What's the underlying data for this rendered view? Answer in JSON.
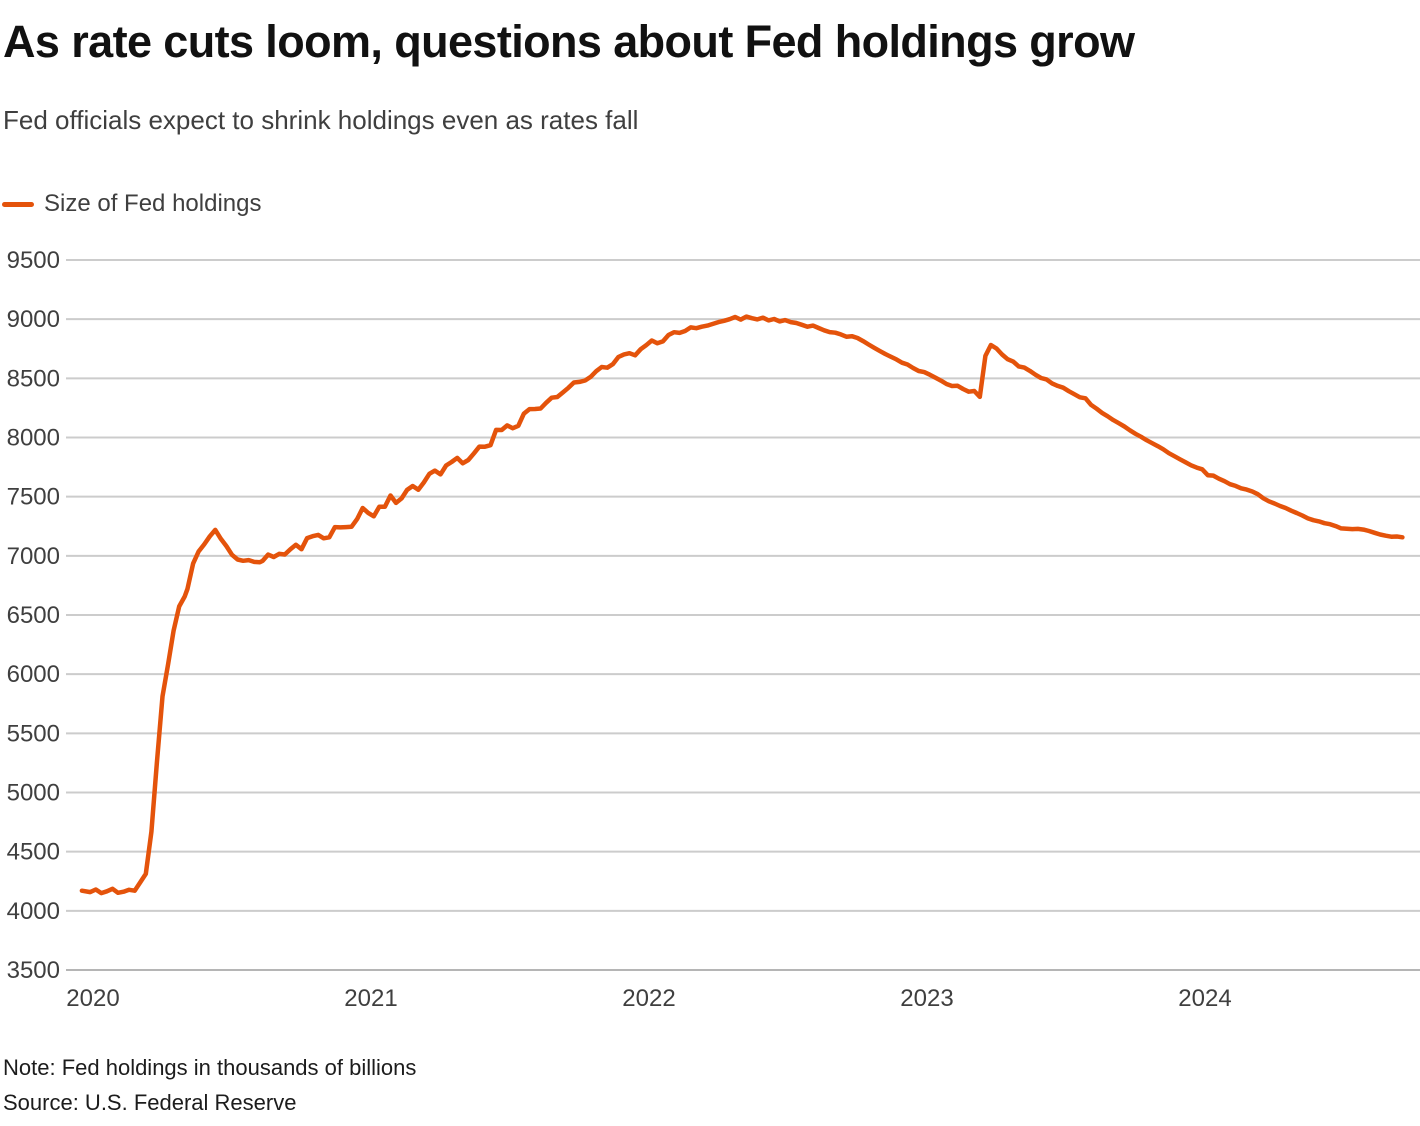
{
  "header": {
    "title": "As rate cuts loom, questions about Fed holdings grow",
    "subtitle": "Fed officials expect to shrink holdings even as rates fall"
  },
  "legend": {
    "label": "Size of Fed holdings"
  },
  "footer": {
    "note": "Note: Fed holdings in thousands of billions",
    "source": "Source: U.S. Federal Reserve"
  },
  "colors": {
    "line": "#E4530B",
    "grid": "#cccccc",
    "baseline": "#b5b5b5",
    "tick_text": "#3f3f3f",
    "title_text": "#111111",
    "note_text": "#1c1c1c"
  },
  "chart_data": {
    "type": "line",
    "title": "As rate cuts loom, questions about Fed holdings grow",
    "subtitle": "Fed officials expect to shrink holdings even as rates fall",
    "xlabel": "",
    "ylabel": "",
    "unit_note": "Fed holdings in thousands of billions",
    "source": "U.S. Federal Reserve",
    "grid": true,
    "legend_position": "top-left",
    "ylim": [
      3500,
      9500
    ],
    "xlim": [
      2019.9,
      2024.78
    ],
    "y_ticks": [
      9500,
      9000,
      8500,
      8000,
      7500,
      7000,
      6500,
      6000,
      5500,
      5000,
      4500,
      4000,
      3500
    ],
    "x_ticks": [
      2020,
      2021,
      2022,
      2023,
      2024
    ],
    "series": [
      {
        "name": "Size of Fed holdings",
        "color": "#E4530B",
        "points": [
          [
            2019.96,
            4170
          ],
          [
            2019.99,
            4158
          ],
          [
            2020.01,
            4180
          ],
          [
            2020.03,
            4150
          ],
          [
            2020.05,
            4165
          ],
          [
            2020.07,
            4186
          ],
          [
            2020.09,
            4152
          ],
          [
            2020.11,
            4162
          ],
          [
            2020.13,
            4178
          ],
          [
            2020.15,
            4170
          ],
          [
            2020.17,
            4242
          ],
          [
            2020.19,
            4312
          ],
          [
            2020.21,
            4668
          ],
          [
            2020.23,
            5254
          ],
          [
            2020.25,
            5812
          ],
          [
            2020.27,
            6083
          ],
          [
            2020.29,
            6368
          ],
          [
            2020.31,
            6573
          ],
          [
            2020.33,
            6656
          ],
          [
            2020.34,
            6721
          ],
          [
            2020.36,
            6934
          ],
          [
            2020.38,
            7037
          ],
          [
            2020.4,
            7097
          ],
          [
            2020.42,
            7165
          ],
          [
            2020.44,
            7219
          ],
          [
            2020.46,
            7143
          ],
          [
            2020.48,
            7082
          ],
          [
            2020.5,
            7009
          ],
          [
            2020.52,
            6969
          ],
          [
            2020.54,
            6958
          ],
          [
            2020.56,
            6964
          ],
          [
            2020.58,
            6949
          ],
          [
            2020.6,
            6945
          ],
          [
            2020.61,
            6957
          ],
          [
            2020.63,
            7010
          ],
          [
            2020.65,
            6990
          ],
          [
            2020.67,
            7017
          ],
          [
            2020.69,
            7011
          ],
          [
            2020.71,
            7056
          ],
          [
            2020.73,
            7093
          ],
          [
            2020.75,
            7056
          ],
          [
            2020.77,
            7150
          ],
          [
            2020.79,
            7166
          ],
          [
            2020.81,
            7177
          ],
          [
            2020.83,
            7148
          ],
          [
            2020.85,
            7157
          ],
          [
            2020.87,
            7243
          ],
          [
            2020.89,
            7240
          ],
          [
            2020.91,
            7243
          ],
          [
            2020.93,
            7245
          ],
          [
            2020.95,
            7310
          ],
          [
            2020.97,
            7404
          ],
          [
            2020.99,
            7363
          ],
          [
            2021.01,
            7334
          ],
          [
            2021.03,
            7415
          ],
          [
            2021.05,
            7414
          ],
          [
            2021.07,
            7510
          ],
          [
            2021.09,
            7447
          ],
          [
            2021.11,
            7485
          ],
          [
            2021.13,
            7557
          ],
          [
            2021.15,
            7590
          ],
          [
            2021.17,
            7559
          ],
          [
            2021.19,
            7620
          ],
          [
            2021.21,
            7693
          ],
          [
            2021.23,
            7720
          ],
          [
            2021.25,
            7688
          ],
          [
            2021.27,
            7763
          ],
          [
            2021.29,
            7793
          ],
          [
            2021.31,
            7828
          ],
          [
            2021.33,
            7782
          ],
          [
            2021.35,
            7810
          ],
          [
            2021.37,
            7866
          ],
          [
            2021.39,
            7923
          ],
          [
            2021.41,
            7922
          ],
          [
            2021.43,
            7935
          ],
          [
            2021.45,
            8064
          ],
          [
            2021.47,
            8063
          ],
          [
            2021.49,
            8102
          ],
          [
            2021.51,
            8079
          ],
          [
            2021.53,
            8099
          ],
          [
            2021.55,
            8202
          ],
          [
            2021.57,
            8240
          ],
          [
            2021.59,
            8241
          ],
          [
            2021.61,
            8245
          ],
          [
            2021.63,
            8293
          ],
          [
            2021.65,
            8336
          ],
          [
            2021.67,
            8342
          ],
          [
            2021.69,
            8380
          ],
          [
            2021.71,
            8420
          ],
          [
            2021.73,
            8465
          ],
          [
            2021.75,
            8470
          ],
          [
            2021.77,
            8482
          ],
          [
            2021.79,
            8512
          ],
          [
            2021.81,
            8560
          ],
          [
            2021.83,
            8596
          ],
          [
            2021.85,
            8590
          ],
          [
            2021.87,
            8620
          ],
          [
            2021.89,
            8680
          ],
          [
            2021.91,
            8702
          ],
          [
            2021.93,
            8712
          ],
          [
            2021.95,
            8695
          ],
          [
            2021.97,
            8746
          ],
          [
            2021.99,
            8780
          ],
          [
            2022.01,
            8820
          ],
          [
            2022.03,
            8796
          ],
          [
            2022.05,
            8812
          ],
          [
            2022.07,
            8866
          ],
          [
            2022.09,
            8890
          ],
          [
            2022.11,
            8884
          ],
          [
            2022.13,
            8900
          ],
          [
            2022.15,
            8930
          ],
          [
            2022.17,
            8924
          ],
          [
            2022.19,
            8936
          ],
          [
            2022.21,
            8946
          ],
          [
            2022.23,
            8960
          ],
          [
            2022.25,
            8975
          ],
          [
            2022.27,
            8986
          ],
          [
            2022.29,
            9000
          ],
          [
            2022.31,
            9018
          ],
          [
            2022.33,
            8996
          ],
          [
            2022.35,
            9022
          ],
          [
            2022.37,
            9008
          ],
          [
            2022.39,
            8998
          ],
          [
            2022.41,
            9012
          ],
          [
            2022.43,
            8990
          ],
          [
            2022.45,
            9001
          ],
          [
            2022.47,
            8981
          ],
          [
            2022.49,
            8992
          ],
          [
            2022.51,
            8975
          ],
          [
            2022.53,
            8968
          ],
          [
            2022.55,
            8952
          ],
          [
            2022.57,
            8936
          ],
          [
            2022.59,
            8946
          ],
          [
            2022.61,
            8925
          ],
          [
            2022.63,
            8906
          ],
          [
            2022.65,
            8891
          ],
          [
            2022.67,
            8886
          ],
          [
            2022.69,
            8871
          ],
          [
            2022.71,
            8852
          ],
          [
            2022.73,
            8856
          ],
          [
            2022.75,
            8841
          ],
          [
            2022.77,
            8815
          ],
          [
            2022.79,
            8786
          ],
          [
            2022.81,
            8758
          ],
          [
            2022.83,
            8732
          ],
          [
            2022.85,
            8706
          ],
          [
            2022.87,
            8682
          ],
          [
            2022.89,
            8660
          ],
          [
            2022.91,
            8632
          ],
          [
            2022.93,
            8617
          ],
          [
            2022.95,
            8587
          ],
          [
            2022.97,
            8562
          ],
          [
            2022.99,
            8553
          ],
          [
            2023.01,
            8531
          ],
          [
            2023.03,
            8506
          ],
          [
            2023.05,
            8481
          ],
          [
            2023.07,
            8452
          ],
          [
            2023.09,
            8435
          ],
          [
            2023.11,
            8437
          ],
          [
            2023.13,
            8410
          ],
          [
            2023.15,
            8387
          ],
          [
            2023.17,
            8393
          ],
          [
            2023.19,
            8343
          ],
          [
            2023.21,
            8690
          ],
          [
            2023.23,
            8782
          ],
          [
            2023.25,
            8752
          ],
          [
            2023.27,
            8701
          ],
          [
            2023.29,
            8662
          ],
          [
            2023.31,
            8641
          ],
          [
            2023.33,
            8601
          ],
          [
            2023.35,
            8591
          ],
          [
            2023.37,
            8563
          ],
          [
            2023.39,
            8531
          ],
          [
            2023.41,
            8503
          ],
          [
            2023.43,
            8491
          ],
          [
            2023.45,
            8457
          ],
          [
            2023.47,
            8436
          ],
          [
            2023.49,
            8421
          ],
          [
            2023.51,
            8391
          ],
          [
            2023.53,
            8366
          ],
          [
            2023.55,
            8340
          ],
          [
            2023.57,
            8331
          ],
          [
            2023.59,
            8276
          ],
          [
            2023.61,
            8243
          ],
          [
            2023.63,
            8208
          ],
          [
            2023.65,
            8179
          ],
          [
            2023.67,
            8147
          ],
          [
            2023.69,
            8121
          ],
          [
            2023.71,
            8093
          ],
          [
            2023.73,
            8061
          ],
          [
            2023.75,
            8031
          ],
          [
            2023.77,
            8006
          ],
          [
            2023.79,
            7977
          ],
          [
            2023.81,
            7952
          ],
          [
            2023.83,
            7927
          ],
          [
            2023.85,
            7900
          ],
          [
            2023.87,
            7867
          ],
          [
            2023.89,
            7842
          ],
          [
            2023.91,
            7816
          ],
          [
            2023.93,
            7791
          ],
          [
            2023.95,
            7765
          ],
          [
            2023.97,
            7746
          ],
          [
            2023.99,
            7731
          ],
          [
            2024.01,
            7681
          ],
          [
            2024.03,
            7678
          ],
          [
            2024.05,
            7652
          ],
          [
            2024.07,
            7631
          ],
          [
            2024.09,
            7605
          ],
          [
            2024.11,
            7591
          ],
          [
            2024.13,
            7571
          ],
          [
            2024.15,
            7560
          ],
          [
            2024.17,
            7544
          ],
          [
            2024.19,
            7521
          ],
          [
            2024.21,
            7486
          ],
          [
            2024.23,
            7461
          ],
          [
            2024.25,
            7442
          ],
          [
            2024.27,
            7421
          ],
          [
            2024.29,
            7404
          ],
          [
            2024.31,
            7381
          ],
          [
            2024.33,
            7362
          ],
          [
            2024.35,
            7341
          ],
          [
            2024.37,
            7316
          ],
          [
            2024.39,
            7301
          ],
          [
            2024.41,
            7291
          ],
          [
            2024.43,
            7276
          ],
          [
            2024.45,
            7267
          ],
          [
            2024.47,
            7251
          ],
          [
            2024.49,
            7232
          ],
          [
            2024.51,
            7229
          ],
          [
            2024.53,
            7226
          ],
          [
            2024.55,
            7228
          ],
          [
            2024.57,
            7222
          ],
          [
            2024.59,
            7210
          ],
          [
            2024.61,
            7195
          ],
          [
            2024.63,
            7180
          ],
          [
            2024.65,
            7170
          ],
          [
            2024.67,
            7162
          ],
          [
            2024.69,
            7163
          ],
          [
            2024.71,
            7157
          ]
        ]
      }
    ]
  }
}
